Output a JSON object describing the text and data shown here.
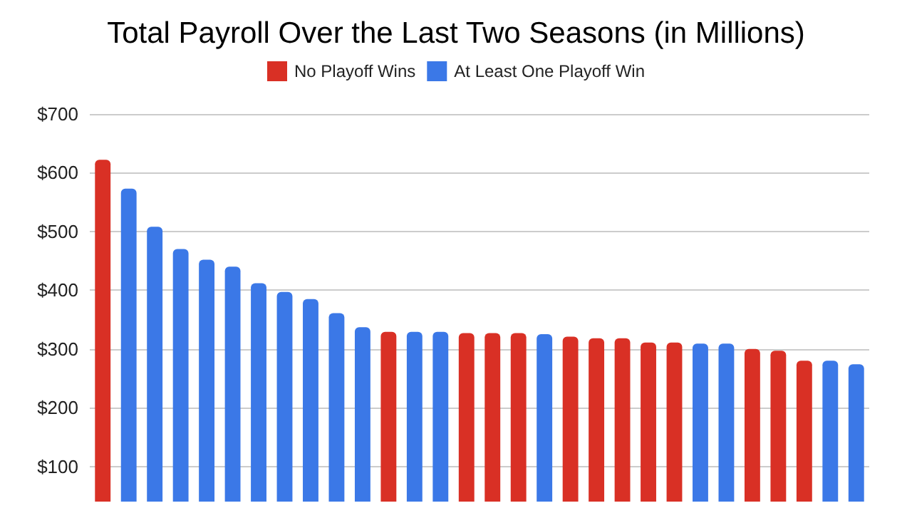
{
  "chart_data": {
    "type": "bar",
    "title": "Total Payroll Over the Last Two Seasons (in Millions)",
    "categories": [
      null,
      null,
      null,
      null,
      null,
      null,
      null,
      null,
      null,
      null,
      null,
      null,
      null,
      null,
      null,
      null,
      null,
      null,
      null,
      null,
      null,
      null,
      null,
      null,
      null,
      null,
      null,
      null,
      null,
      null
    ],
    "series": [
      {
        "name": "No Playoff Wins",
        "color": "#d93025",
        "values": [
          622,
          null,
          null,
          null,
          null,
          null,
          null,
          null,
          null,
          null,
          null,
          329,
          null,
          null,
          327,
          327,
          327,
          null,
          321,
          318,
          318,
          311,
          311,
          null,
          null,
          300,
          297,
          280,
          null,
          null
        ]
      },
      {
        "name": "At Least One Playoff Win",
        "color": "#3b78e7",
        "values": [
          null,
          573,
          508,
          470,
          452,
          440,
          412,
          397,
          385,
          361,
          337,
          null,
          329,
          329,
          null,
          null,
          null,
          325,
          null,
          null,
          null,
          null,
          null,
          309,
          309,
          null,
          null,
          null,
          280,
          274
        ]
      }
    ],
    "ylim": [
      40,
      700
    ],
    "yticks": [
      {
        "value": 100,
        "label": "$100"
      },
      {
        "value": 200,
        "label": "$200"
      },
      {
        "value": 300,
        "label": "$300"
      },
      {
        "value": 400,
        "label": "$400"
      },
      {
        "value": 500,
        "label": "$500"
      },
      {
        "value": 600,
        "label": "$600"
      },
      {
        "value": 700,
        "label": "$700"
      }
    ],
    "grid": "y",
    "legend": "top"
  }
}
